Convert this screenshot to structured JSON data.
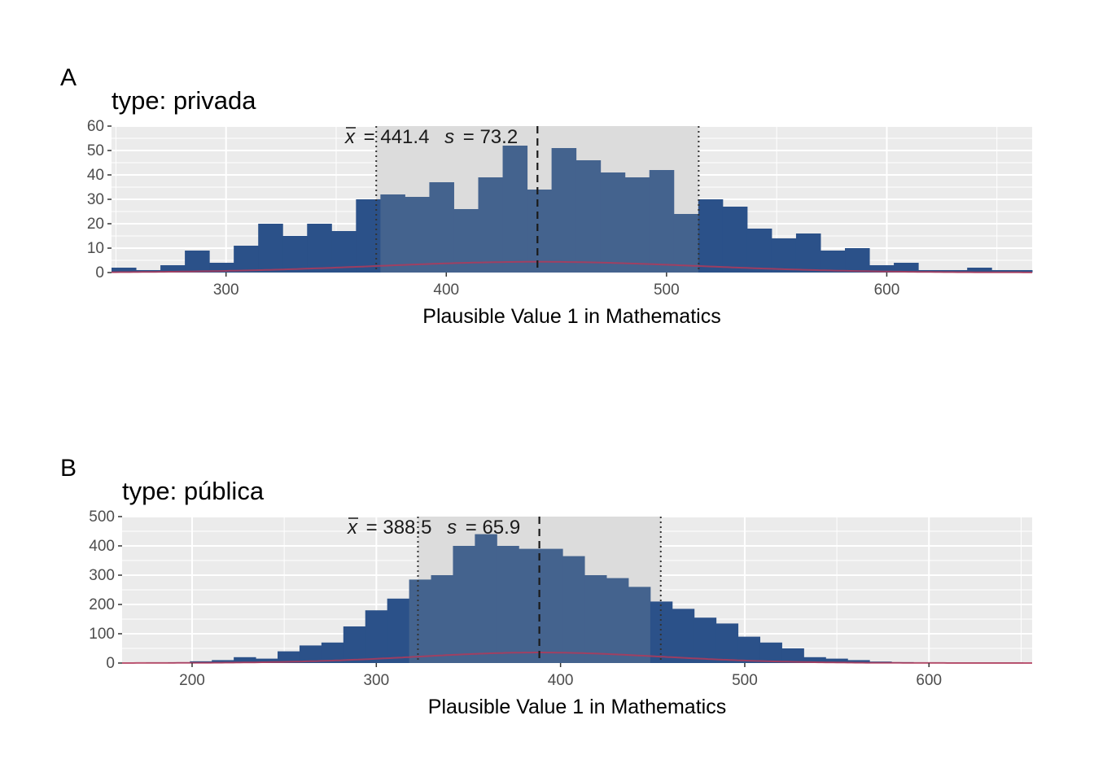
{
  "chart_data": [
    {
      "type": "bar",
      "tag": "A",
      "title": "type: privada",
      "xlabel": "Plausible Value 1 in Mathematics",
      "ylabel": "",
      "xlim": [
        248,
        666
      ],
      "ylim": [
        0,
        60
      ],
      "xticks": [
        300,
        400,
        500,
        600
      ],
      "yticks": [
        0,
        10,
        20,
        30,
        40,
        50,
        60
      ],
      "bin_width": 11.1,
      "bin_start": 248,
      "values": [
        2,
        1,
        3,
        9,
        4,
        11,
        20,
        15,
        20,
        17,
        30,
        32,
        31,
        37,
        26,
        39,
        52,
        34,
        51,
        46,
        41,
        39,
        42,
        24,
        30,
        27,
        18,
        14,
        16,
        9,
        10,
        3,
        4,
        1,
        1,
        2,
        1,
        1
      ],
      "mean": 441.4,
      "sd": 73.2,
      "mean_label": "= 441.4",
      "sd_label": "= 73.2",
      "xbar_symbol": "x",
      "s_symbol": "s",
      "density_peak": 4.4,
      "grid": true,
      "colors": {
        "bar": "#2b5189",
        "bar_inner": "#44638e",
        "shade": "#dcdcdc",
        "density": "#b03a5b"
      }
    },
    {
      "type": "bar",
      "tag": "B",
      "title": "type: pública",
      "xlabel": "Plausible Value 1 in Mathematics",
      "ylabel": "",
      "xlim": [
        162,
        656
      ],
      "ylim": [
        0,
        500
      ],
      "xticks": [
        200,
        300,
        400,
        500,
        600
      ],
      "yticks": [
        0,
        100,
        200,
        300,
        400,
        500
      ],
      "bin_width": 11.9,
      "bin_start": 175,
      "values": [
        1,
        2,
        6,
        10,
        20,
        15,
        40,
        60,
        70,
        125,
        180,
        220,
        285,
        300,
        400,
        440,
        400,
        390,
        390,
        365,
        300,
        290,
        260,
        210,
        185,
        155,
        135,
        90,
        70,
        50,
        20,
        15,
        10,
        5,
        3,
        1,
        1,
        1,
        1,
        1
      ],
      "mean": 388.5,
      "sd": 65.9,
      "mean_label": "= 388.5",
      "sd_label": "= 65.9",
      "xbar_symbol": "x",
      "s_symbol": "s",
      "density_peak": 36,
      "grid": true,
      "colors": {
        "bar": "#2b5189",
        "bar_inner": "#44638e",
        "shade": "#dcdcdc",
        "density": "#b03a5b"
      }
    }
  ]
}
